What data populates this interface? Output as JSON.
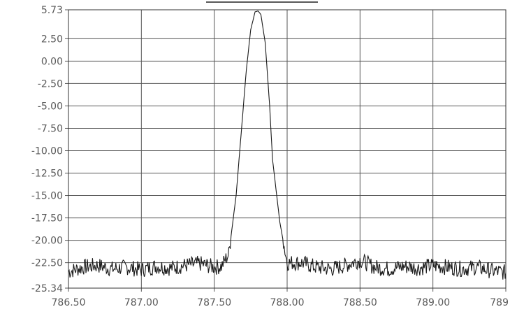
{
  "chart_data": {
    "type": "line",
    "title": "",
    "xlabel": "",
    "ylabel": "",
    "x_ticks": [
      "786.50",
      "787.00",
      "787.50",
      "788.00",
      "788.50",
      "789.00",
      "789"
    ],
    "y_ticks": [
      "5.73",
      "2.50",
      "0.00",
      "-2.50",
      "-5.00",
      "-7.50",
      "-10.00",
      "-12.50",
      "-15.00",
      "-17.50",
      "-20.00",
      "-22.50",
      "-25.34"
    ],
    "xlim": [
      786.5,
      789.5
    ],
    "ylim": [
      -25.34,
      5.73
    ],
    "grid": true,
    "series": [
      {
        "x": [
          786.5,
          786.6,
          786.7,
          786.8,
          786.9,
          787.0,
          787.1,
          787.2,
          787.3,
          787.4,
          787.5,
          787.55,
          787.6,
          787.65,
          787.7,
          787.72,
          787.75,
          787.78,
          787.8,
          787.82,
          787.85,
          787.88,
          787.9,
          787.95,
          788.0,
          788.1,
          788.2,
          788.3,
          788.4,
          788.5,
          788.6,
          788.7,
          788.8,
          788.9,
          789.0,
          789.1,
          789.2,
          789.3,
          789.4,
          789.5
        ],
        "y": [
          -23.5,
          -23.0,
          -22.8,
          -23.2,
          -23.0,
          -23.3,
          -22.9,
          -23.1,
          -22.8,
          -22.6,
          -23.0,
          -22.9,
          -21.5,
          -15.0,
          -5.0,
          -1.0,
          3.5,
          5.5,
          5.6,
          5.2,
          2.0,
          -5.0,
          -11.0,
          -18.0,
          -22.5,
          -22.5,
          -23.0,
          -23.2,
          -22.8,
          -22.2,
          -23.0,
          -23.2,
          -22.9,
          -23.1,
          -22.8,
          -23.0,
          -23.2,
          -23.0,
          -23.4,
          -23.6
        ]
      }
    ]
  }
}
